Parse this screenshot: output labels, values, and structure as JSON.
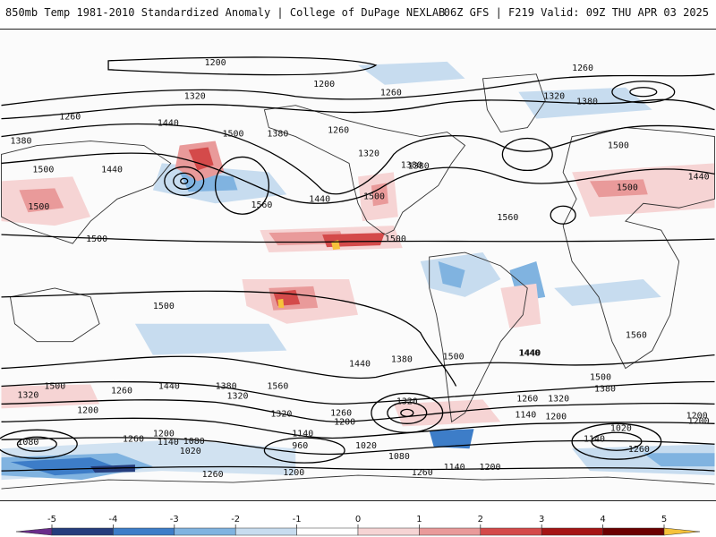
{
  "header": {
    "left": "850mb Temp 1981-2010 Standardized Anomaly | College of DuPage NEXLAB",
    "right": "06Z GFS | F219 Valid: 09Z THU APR 03 2025"
  },
  "colorbar": {
    "ticks": [
      "-5",
      "-4",
      "-3",
      "-2",
      "-1",
      "0",
      "1",
      "2",
      "3",
      "4",
      "5"
    ],
    "colors": [
      "#6a2c8a",
      "#253d7d",
      "#3d7dc8",
      "#80b3e0",
      "#c7dcef",
      "#ffffff",
      "#f6d4d4",
      "#e99a9a",
      "#d44a4a",
      "#a51414",
      "#6b0000",
      "#f6c23b"
    ]
  },
  "contour_labels": [
    "1200",
    "1260",
    "1200",
    "1260",
    "1320",
    "1380",
    "1320",
    "1260",
    "1380",
    "1440",
    "1500",
    "1380",
    "1260",
    "1320",
    "1380",
    "1500",
    "1560",
    "1440",
    "1500",
    "1560",
    "1500",
    "1500",
    "1500",
    "1500",
    "1440",
    "1380",
    "1500",
    "1500",
    "1440",
    "1560",
    "1320",
    "1260",
    "1200",
    "1320",
    "1380",
    "1440",
    "1500",
    "1560",
    "1440",
    "1380",
    "1320",
    "1260",
    "1200",
    "1140",
    "1080",
    "1020",
    "960",
    "1140",
    "1200",
    "1260",
    "1440",
    "1500",
    "1320",
    "1200",
    "1260",
    "1140",
    "1020",
    "1080",
    "1140",
    "1200",
    "1260",
    "1380",
    "1440",
    "1500",
    "1260",
    "1320",
    "1200",
    "1080",
    "1200",
    "1020",
    "1140",
    "1260",
    "1200"
  ]
}
